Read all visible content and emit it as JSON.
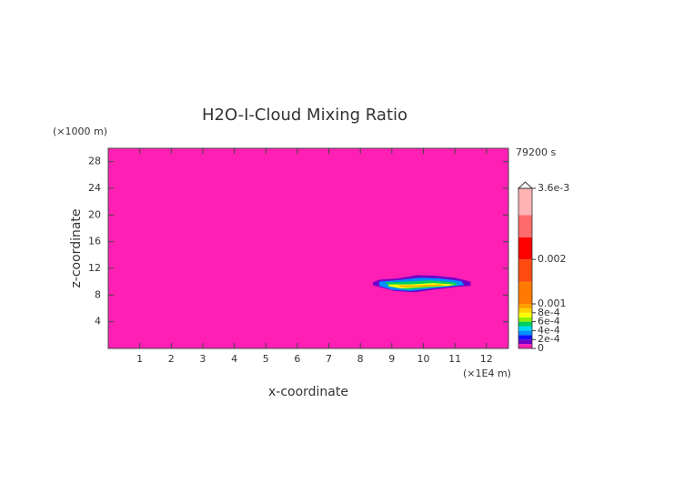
{
  "chart_data": {
    "type": "contour",
    "title": "H2O-I-Cloud Mixing Ratio",
    "xlabel": "x-coordinate",
    "ylabel": "z-coordinate",
    "x_unit": "(×1E4 m)",
    "y_unit": "(×1000 m)",
    "time_label": "79200 s",
    "xlim": [
      0,
      12.7
    ],
    "ylim": [
      0,
      30
    ],
    "xticks": [
      1,
      2,
      3,
      4,
      5,
      6,
      7,
      8,
      9,
      10,
      11,
      12
    ],
    "yticks": [
      4,
      8,
      12,
      16,
      20,
      24,
      28
    ],
    "colorbar": {
      "levels": [
        0,
        0.0001,
        0.0002,
        0.0003,
        0.0004,
        0.0005,
        0.0006,
        0.0007,
        0.0008,
        0.0009,
        0.001,
        0.0015,
        0.002,
        0.0025,
        0.003,
        0.0036
      ],
      "colors": [
        "#ff1fb4",
        "#7000c8",
        "#1010ff",
        "#0090ff",
        "#00d8f0",
        "#00d060",
        "#90f000",
        "#ffff00",
        "#ffd000",
        "#ffa000",
        "#ff7a00",
        "#ff4a10",
        "#ff0000",
        "#ff6a6a",
        "#ffb4b4"
      ],
      "ticks": [
        0,
        {
          "value": 0.0002,
          "label": "2e-4"
        },
        {
          "value": 0.0004,
          "label": "4e-4"
        },
        {
          "value": 0.0006,
          "label": "6e-4"
        },
        {
          "value": 0.0008,
          "label": "8e-4"
        },
        0.001,
        0.002,
        {
          "value": 0.0036,
          "label": "3.6e-3"
        }
      ]
    },
    "contours": [
      {
        "level": 0.0001,
        "x": [
          8.4,
          8.6,
          9.2,
          9.8,
          10.4,
          11.0,
          11.5,
          11.5,
          11.0,
          10.3,
          9.7,
          9.1,
          8.6,
          8.4
        ],
        "y": [
          9.9,
          10.3,
          10.5,
          11.0,
          10.9,
          10.6,
          10.0,
          9.4,
          9.2,
          8.8,
          8.4,
          8.6,
          9.2,
          9.5
        ]
      },
      {
        "level": 0.0003,
        "x": [
          8.6,
          9.3,
          9.9,
          10.5,
          11.2,
          11.3,
          10.3,
          9.6,
          9.0,
          8.6
        ],
        "y": [
          10.0,
          10.3,
          10.6,
          10.5,
          10.1,
          9.5,
          9.0,
          8.6,
          8.8,
          9.4
        ]
      },
      {
        "level": 0.0005,
        "x": [
          8.8,
          9.5,
          10.2,
          11.0,
          11.1,
          10.2,
          9.5,
          8.9
        ],
        "y": [
          9.9,
          10.0,
          10.2,
          9.9,
          9.5,
          9.1,
          8.8,
          9.3
        ]
      },
      {
        "level": 0.0007,
        "x": [
          8.9,
          9.6,
          10.3,
          11.0,
          10.8,
          10.0,
          9.3,
          8.9
        ],
        "y": [
          9.6,
          9.6,
          9.8,
          9.6,
          9.4,
          9.2,
          9.0,
          9.3
        ]
      },
      {
        "level": 0.0009,
        "x": [
          9.2,
          9.8,
          10.5,
          10.7,
          10.0,
          9.3
        ],
        "y": [
          9.45,
          9.45,
          9.6,
          9.45,
          9.25,
          9.2
        ]
      }
    ]
  }
}
